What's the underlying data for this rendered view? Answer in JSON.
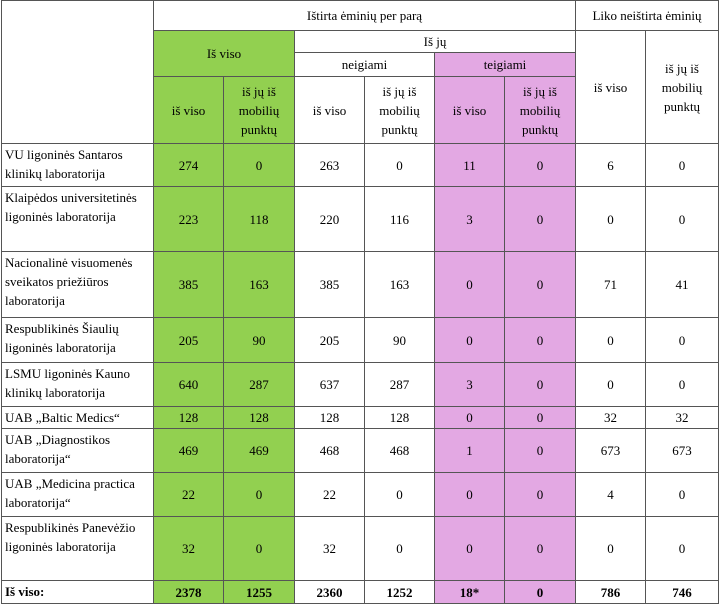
{
  "header": {
    "group_tested": "Ištirta ėminių per parą",
    "group_remaining": "Liko neištirta ėminių",
    "total": "Iš viso",
    "of_which": "Iš jų",
    "negative": "neigiami",
    "positive": "teigiami",
    "columns": [
      "iš viso",
      "iš jų iš mobilių punktų",
      "iš viso",
      "iš jų iš mobilių punktų",
      "iš viso",
      "iš jų iš mobilių punktų",
      "iš viso",
      "iš jų iš mobilių punktų"
    ]
  },
  "table": {
    "rows": [
      [
        "VU ligoninės Santaros klinikų laboratorija",
        274,
        0,
        263,
        0,
        11,
        0,
        6,
        0
      ],
      [
        "Klaipėdos universitetinės ligoninės laboratorija",
        223,
        118,
        220,
        116,
        3,
        0,
        0,
        0
      ],
      [
        "Nacionalinė visuomenės sveikatos priežiūros laboratorija",
        385,
        163,
        385,
        163,
        0,
        0,
        71,
        41
      ],
      [
        "Respublikinės Šiaulių ligoninės laboratorija",
        205,
        90,
        205,
        90,
        0,
        0,
        0,
        0
      ],
      [
        "LSMU ligoninės Kauno klinikų laboratorija",
        640,
        287,
        637,
        287,
        3,
        0,
        0,
        0
      ],
      [
        "UAB „Baltic Medics“",
        128,
        128,
        128,
        128,
        0,
        0,
        32,
        32
      ],
      [
        "UAB „Diagnostikos laboratorija“",
        469,
        469,
        468,
        468,
        1,
        0,
        673,
        673
      ],
      [
        "UAB „Medicina practica laboratorija“",
        22,
        0,
        22,
        0,
        0,
        0,
        4,
        0
      ],
      [
        "Respublikinės Panevėžio ligoninės laboratorija",
        32,
        0,
        32,
        0,
        0,
        0,
        0,
        0
      ],
      [
        "Iš viso:",
        2378,
        1255,
        2360,
        1252,
        "18*",
        0,
        786,
        746
      ]
    ]
  }
}
